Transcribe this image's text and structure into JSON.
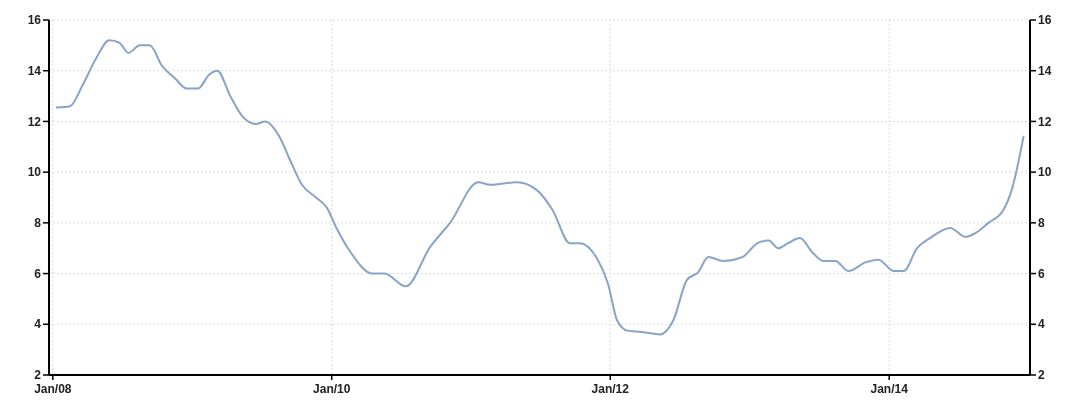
{
  "chart_data": {
    "type": "line",
    "x": [
      "2008-01-11",
      "2008-02-15",
      "2008-03-18",
      "2008-04-24",
      "2008-05-28",
      "2008-06-24",
      "2008-07-17",
      "2008-08-16",
      "2008-09-11",
      "2008-10-13",
      "2008-11-16",
      "2008-12-17",
      "2009-01-16",
      "2009-02-14",
      "2009-03-07",
      "2009-04-10",
      "2009-05-12",
      "2009-06-16",
      "2009-07-11",
      "2009-08-15",
      "2009-09-16",
      "2009-10-15",
      "2009-11-21",
      "2009-12-19",
      "2010-01-15",
      "2010-02-19",
      "2010-04-18",
      "2010-05-19",
      "2010-07-14",
      "2010-09-16",
      "2010-11-07",
      "2011-01-20",
      "2011-02-20",
      "2011-05-01",
      "2011-06-22",
      "2011-08-03",
      "2011-09-17",
      "2011-10-13",
      "2011-11-27",
      "2011-12-26",
      "2012-01-19",
      "2012-02-15",
      "2012-03-24",
      "2012-05-10",
      "2012-06-14",
      "2012-07-20",
      "2012-08-18",
      "2012-09-14",
      "2012-10-23",
      "2012-12-12",
      "2013-01-21",
      "2013-02-19",
      "2013-03-16",
      "2013-04-11",
      "2013-05-12",
      "2013-06-13",
      "2013-07-12",
      "2013-08-13",
      "2013-09-16",
      "2013-11-01",
      "2013-12-04",
      "2014-01-13",
      "2014-02-08",
      "2014-03-15",
      "2014-04-18",
      "2014-06-10",
      "2014-07-19",
      "2014-08-15",
      "2014-09-18",
      "2014-10-27",
      "2014-11-20",
      "2014-12-19"
    ],
    "values": [
      12.55,
      12.6,
      13.4,
      14.5,
      15.2,
      15.1,
      14.7,
      15.0,
      15.0,
      14.2,
      13.7,
      13.3,
      13.3,
      13.85,
      14.0,
      13.0,
      12.2,
      11.9,
      12.0,
      11.45,
      10.4,
      9.5,
      9.0,
      8.6,
      7.75,
      6.85,
      6.0,
      6.0,
      5.5,
      7.05,
      8.0,
      9.6,
      9.5,
      9.6,
      9.3,
      8.5,
      7.2,
      7.2,
      6.6,
      5.6,
      4.15,
      3.75,
      3.7,
      3.6,
      4.15,
      5.75,
      6.05,
      6.65,
      6.5,
      6.65,
      7.2,
      7.3,
      7.0,
      7.2,
      7.4,
      6.85,
      6.5,
      6.5,
      6.1,
      6.45,
      6.55,
      6.1,
      6.1,
      7.0,
      7.4,
      7.8,
      7.45,
      7.6,
      8.0,
      8.5,
      9.4,
      11.4
    ],
    "color": "#88a4c8",
    "line_style": "solid",
    "marker": "none",
    "xlim": [
      "2007-12-22",
      "2015-01-05"
    ],
    "xticks": [
      {
        "value": "2008-01-01",
        "label": "Jan/08"
      },
      {
        "value": "2010-01-01",
        "label": "Jan/10"
      },
      {
        "value": "2012-01-01",
        "label": "Jan/12"
      },
      {
        "value": "2014-01-01",
        "label": "Jan/14"
      }
    ],
    "ylim": [
      2,
      16
    ],
    "yticks": [
      2,
      4,
      6,
      8,
      10,
      12,
      14,
      16
    ],
    "y2lim": [
      2,
      16
    ],
    "y2ticks": [
      2,
      4,
      6,
      8,
      10,
      12,
      14,
      16
    ],
    "grid": true
  }
}
